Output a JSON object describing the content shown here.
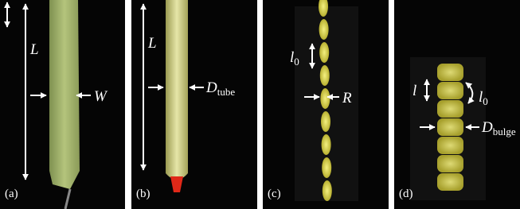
{
  "panels": [
    {
      "label": "(a)",
      "annotations": {
        "length": "L",
        "width": "W"
      }
    },
    {
      "label": "(b)",
      "annotations": {
        "length": "L",
        "diameter": {
          "symbol": "D",
          "subscript": "tube"
        }
      }
    },
    {
      "label": "(c)",
      "annotations": {
        "period": {
          "symbol": "l",
          "subscript": "0"
        },
        "radius": "R"
      }
    },
    {
      "label": "(d)",
      "annotations": {
        "bulge_length": "l",
        "period": {
          "symbol": "l",
          "subscript": "0"
        },
        "diameter": {
          "symbol": "D",
          "subscript": "bulge"
        }
      }
    }
  ]
}
